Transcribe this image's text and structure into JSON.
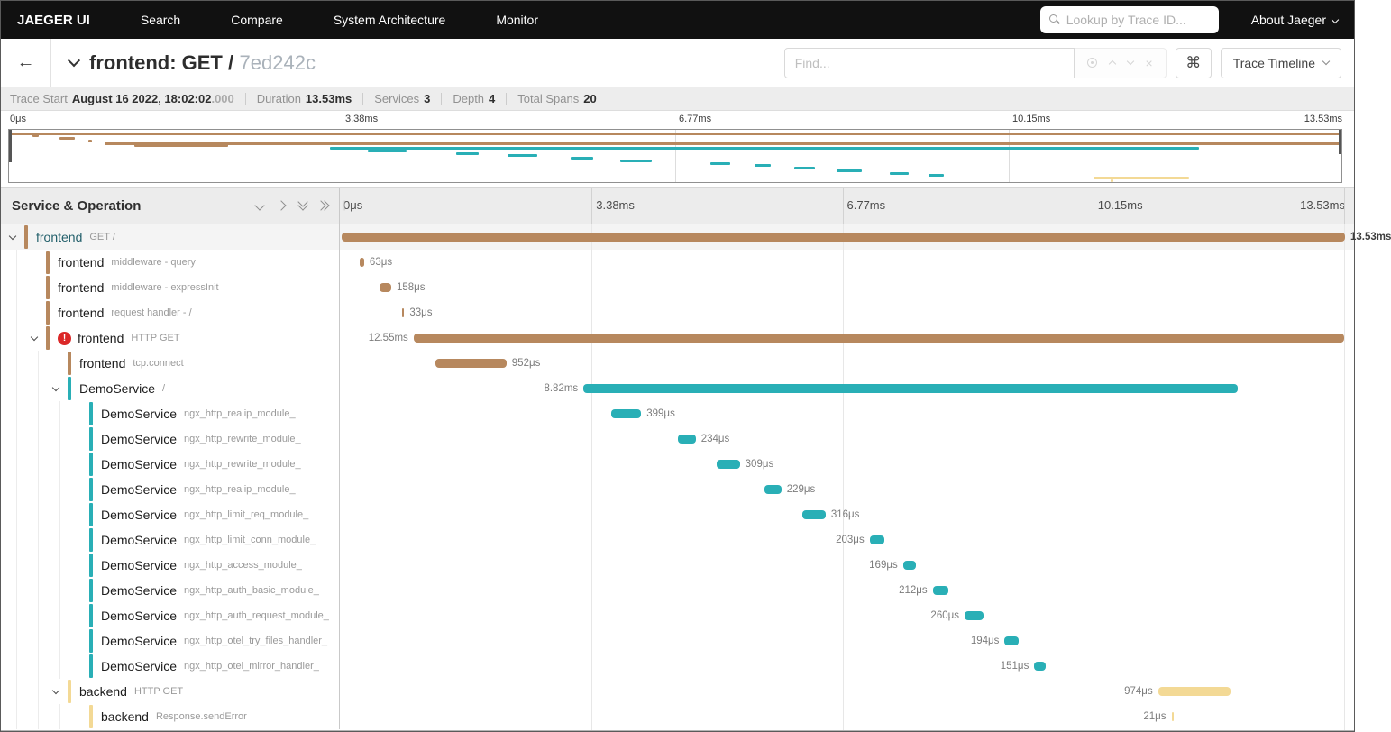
{
  "nav": {
    "brand": "JAEGER UI",
    "items": [
      "Search",
      "Compare",
      "System Architecture",
      "Monitor"
    ],
    "lookup_placeholder": "Lookup by Trace ID...",
    "about_label": "About Jaeger"
  },
  "header": {
    "back_icon": "←",
    "title": "frontend: GET /",
    "trace_id": "7ed242c",
    "find_placeholder": "Find...",
    "clear_icon": "×",
    "cmd_icon": "⌘",
    "view_selector_label": "Trace Timeline"
  },
  "summary": {
    "items": [
      {
        "label": "Trace Start",
        "value": "August 16 2022, 18:02:02",
        "suffix": ".000"
      },
      {
        "label": "Duration",
        "value": "13.53ms",
        "suffix": ""
      },
      {
        "label": "Services",
        "value": "3",
        "suffix": ""
      },
      {
        "label": "Depth",
        "value": "4",
        "suffix": ""
      },
      {
        "label": "Total Spans",
        "value": "20",
        "suffix": ""
      }
    ]
  },
  "timeline": {
    "left_header": "Service & Operation",
    "resizer_glyph": "∥",
    "ticks": [
      "0μs",
      "3.38ms",
      "6.77ms",
      "10.15ms",
      "13.53ms"
    ],
    "total_ms": 13.53
  },
  "colors": {
    "frontend": "#B7885E",
    "DemoService": "#29AFB6",
    "backend": "#F3D995",
    "error": "#DB2828",
    "selected_service_text": "#23606B"
  },
  "spans": [
    {
      "service": "frontend",
      "operation": "GET /",
      "depth": 0,
      "has_children": true,
      "error": false,
      "start_ms": 0,
      "duration_ms": 13.53,
      "label": "13.53ms",
      "label_side": "right",
      "selected": true
    },
    {
      "service": "frontend",
      "operation": "middleware - query",
      "depth": 1,
      "has_children": false,
      "error": false,
      "start_ms": 0.24,
      "duration_ms": 0.063,
      "label": "63μs",
      "label_side": "right",
      "selected": false
    },
    {
      "service": "frontend",
      "operation": "middleware - expressInit",
      "depth": 1,
      "has_children": false,
      "error": false,
      "start_ms": 0.51,
      "duration_ms": 0.158,
      "label": "158μs",
      "label_side": "right",
      "selected": false
    },
    {
      "service": "frontend",
      "operation": "request handler - /",
      "depth": 1,
      "has_children": false,
      "error": false,
      "start_ms": 0.81,
      "duration_ms": 0.033,
      "label": "33μs",
      "label_side": "right",
      "selected": false
    },
    {
      "service": "frontend",
      "operation": "HTTP GET",
      "depth": 1,
      "has_children": true,
      "error": true,
      "start_ms": 0.97,
      "duration_ms": 12.55,
      "label": "12.55ms",
      "label_side": "left",
      "selected": false
    },
    {
      "service": "frontend",
      "operation": "tcp.connect",
      "depth": 2,
      "has_children": false,
      "error": false,
      "start_ms": 1.27,
      "duration_ms": 0.952,
      "label": "952μs",
      "label_side": "right",
      "selected": false
    },
    {
      "service": "DemoService",
      "operation": "/",
      "depth": 2,
      "has_children": true,
      "error": false,
      "start_ms": 3.26,
      "duration_ms": 8.82,
      "label": "8.82ms",
      "label_side": "left",
      "selected": false
    },
    {
      "service": "DemoService",
      "operation": "ngx_http_realip_module_",
      "depth": 3,
      "has_children": false,
      "error": false,
      "start_ms": 3.64,
      "duration_ms": 0.399,
      "label": "399μs",
      "label_side": "right",
      "selected": false
    },
    {
      "service": "DemoService",
      "operation": "ngx_http_rewrite_module_",
      "depth": 3,
      "has_children": false,
      "error": false,
      "start_ms": 4.54,
      "duration_ms": 0.234,
      "label": "234μs",
      "label_side": "right",
      "selected": false
    },
    {
      "service": "DemoService",
      "operation": "ngx_http_rewrite_module_",
      "depth": 3,
      "has_children": false,
      "error": false,
      "start_ms": 5.06,
      "duration_ms": 0.309,
      "label": "309μs",
      "label_side": "right",
      "selected": false
    },
    {
      "service": "DemoService",
      "operation": "ngx_http_realip_module_",
      "depth": 3,
      "has_children": false,
      "error": false,
      "start_ms": 5.7,
      "duration_ms": 0.229,
      "label": "229μs",
      "label_side": "right",
      "selected": false
    },
    {
      "service": "DemoService",
      "operation": "ngx_http_limit_req_module_",
      "depth": 3,
      "has_children": false,
      "error": false,
      "start_ms": 6.21,
      "duration_ms": 0.316,
      "label": "316μs",
      "label_side": "right",
      "selected": false
    },
    {
      "service": "DemoService",
      "operation": "ngx_http_limit_conn_module_",
      "depth": 3,
      "has_children": false,
      "error": false,
      "start_ms": 7.12,
      "duration_ms": 0.203,
      "label": "203μs",
      "label_side": "left",
      "selected": false
    },
    {
      "service": "DemoService",
      "operation": "ngx_http_access_module_",
      "depth": 3,
      "has_children": false,
      "error": false,
      "start_ms": 7.57,
      "duration_ms": 0.169,
      "label": "169μs",
      "label_side": "left",
      "selected": false
    },
    {
      "service": "DemoService",
      "operation": "ngx_http_auth_basic_module_",
      "depth": 3,
      "has_children": false,
      "error": false,
      "start_ms": 7.97,
      "duration_ms": 0.212,
      "label": "212μs",
      "label_side": "left",
      "selected": false
    },
    {
      "service": "DemoService",
      "operation": "ngx_http_auth_request_module_",
      "depth": 3,
      "has_children": false,
      "error": false,
      "start_ms": 8.4,
      "duration_ms": 0.26,
      "label": "260μs",
      "label_side": "left",
      "selected": false
    },
    {
      "service": "DemoService",
      "operation": "ngx_http_otel_try_files_handler_",
      "depth": 3,
      "has_children": false,
      "error": false,
      "start_ms": 8.94,
      "duration_ms": 0.194,
      "label": "194μs",
      "label_side": "left",
      "selected": false
    },
    {
      "service": "DemoService",
      "operation": "ngx_http_otel_mirror_handler_",
      "depth": 3,
      "has_children": false,
      "error": false,
      "start_ms": 9.34,
      "duration_ms": 0.151,
      "label": "151μs",
      "label_side": "left",
      "selected": false
    },
    {
      "service": "backend",
      "operation": "HTTP GET",
      "depth": 2,
      "has_children": true,
      "error": false,
      "start_ms": 11.01,
      "duration_ms": 0.974,
      "label": "974μs",
      "label_side": "left",
      "selected": false
    },
    {
      "service": "backend",
      "operation": "Response.sendError",
      "depth": 3,
      "has_children": false,
      "error": false,
      "start_ms": 11.19,
      "duration_ms": 0.021,
      "label": "21μs",
      "label_side": "left",
      "selected": false
    }
  ]
}
